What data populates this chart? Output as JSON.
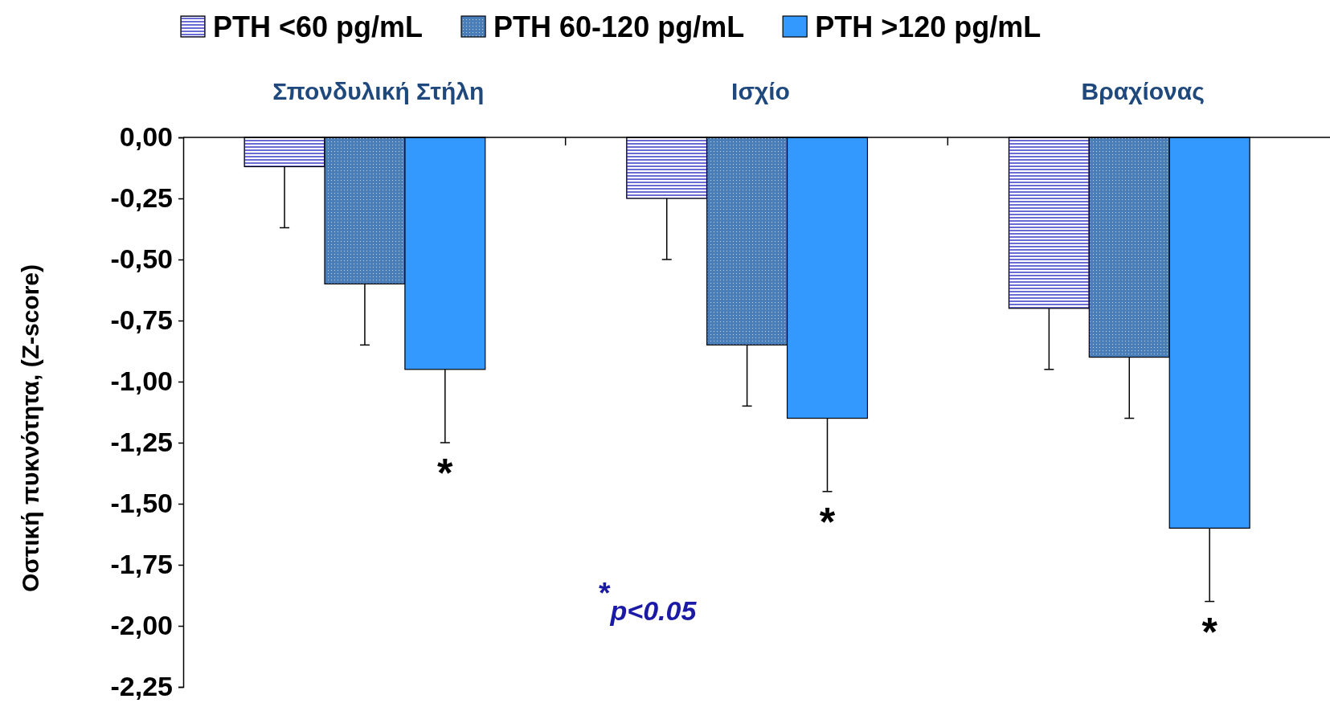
{
  "chart_data": {
    "type": "bar",
    "ylabel": "Οστική πυκνότητα, (Z-score)",
    "categories": [
      "Σπονδυλική Στήλη",
      "Ισχίο",
      "Βραχίονας"
    ],
    "series": [
      {
        "name": "PTH <60 pg/mL",
        "color": "#6b6bd6",
        "values": [
          -0.12,
          -0.25,
          -0.7
        ],
        "errors": [
          [
            -0.37,
            -0.12
          ],
          [
            -0.5,
            -0.25
          ],
          [
            -0.95,
            -0.7
          ]
        ]
      },
      {
        "name": "PTH 60-120 pg/mL",
        "color": "#4a7ebb",
        "values": [
          -0.6,
          -0.85,
          -0.9
        ],
        "errors": [
          [
            -0.85,
            -0.6
          ],
          [
            -1.1,
            -0.85
          ],
          [
            -1.15,
            -0.9
          ]
        ]
      },
      {
        "name": "PTH >120 pg/mL",
        "color": "#3399ff",
        "values": [
          -0.95,
          -1.15,
          -1.6
        ],
        "errors": [
          [
            -1.25,
            -0.95
          ],
          [
            -1.45,
            -1.15
          ],
          [
            -1.9,
            -1.6
          ]
        ]
      }
    ],
    "ylim": [
      -2.25,
      0
    ],
    "yticks": [
      {
        "value": 0,
        "label": "0,00"
      },
      {
        "value": -0.25,
        "label": "-0,25"
      },
      {
        "value": -0.5,
        "label": "-0,50"
      },
      {
        "value": -0.75,
        "label": "-0,75"
      },
      {
        "value": -1,
        "label": "-1,00"
      },
      {
        "value": -1.25,
        "label": "-1,25"
      },
      {
        "value": -1.5,
        "label": "-1,50"
      },
      {
        "value": -1.75,
        "label": "-1,75"
      },
      {
        "value": -2,
        "label": "-2,00"
      },
      {
        "value": -2.25,
        "label": "-2,25"
      }
    ],
    "legend": "top",
    "annotations": [
      "*",
      "*",
      "*",
      "$^{*}$p<0.05"
    ]
  }
}
